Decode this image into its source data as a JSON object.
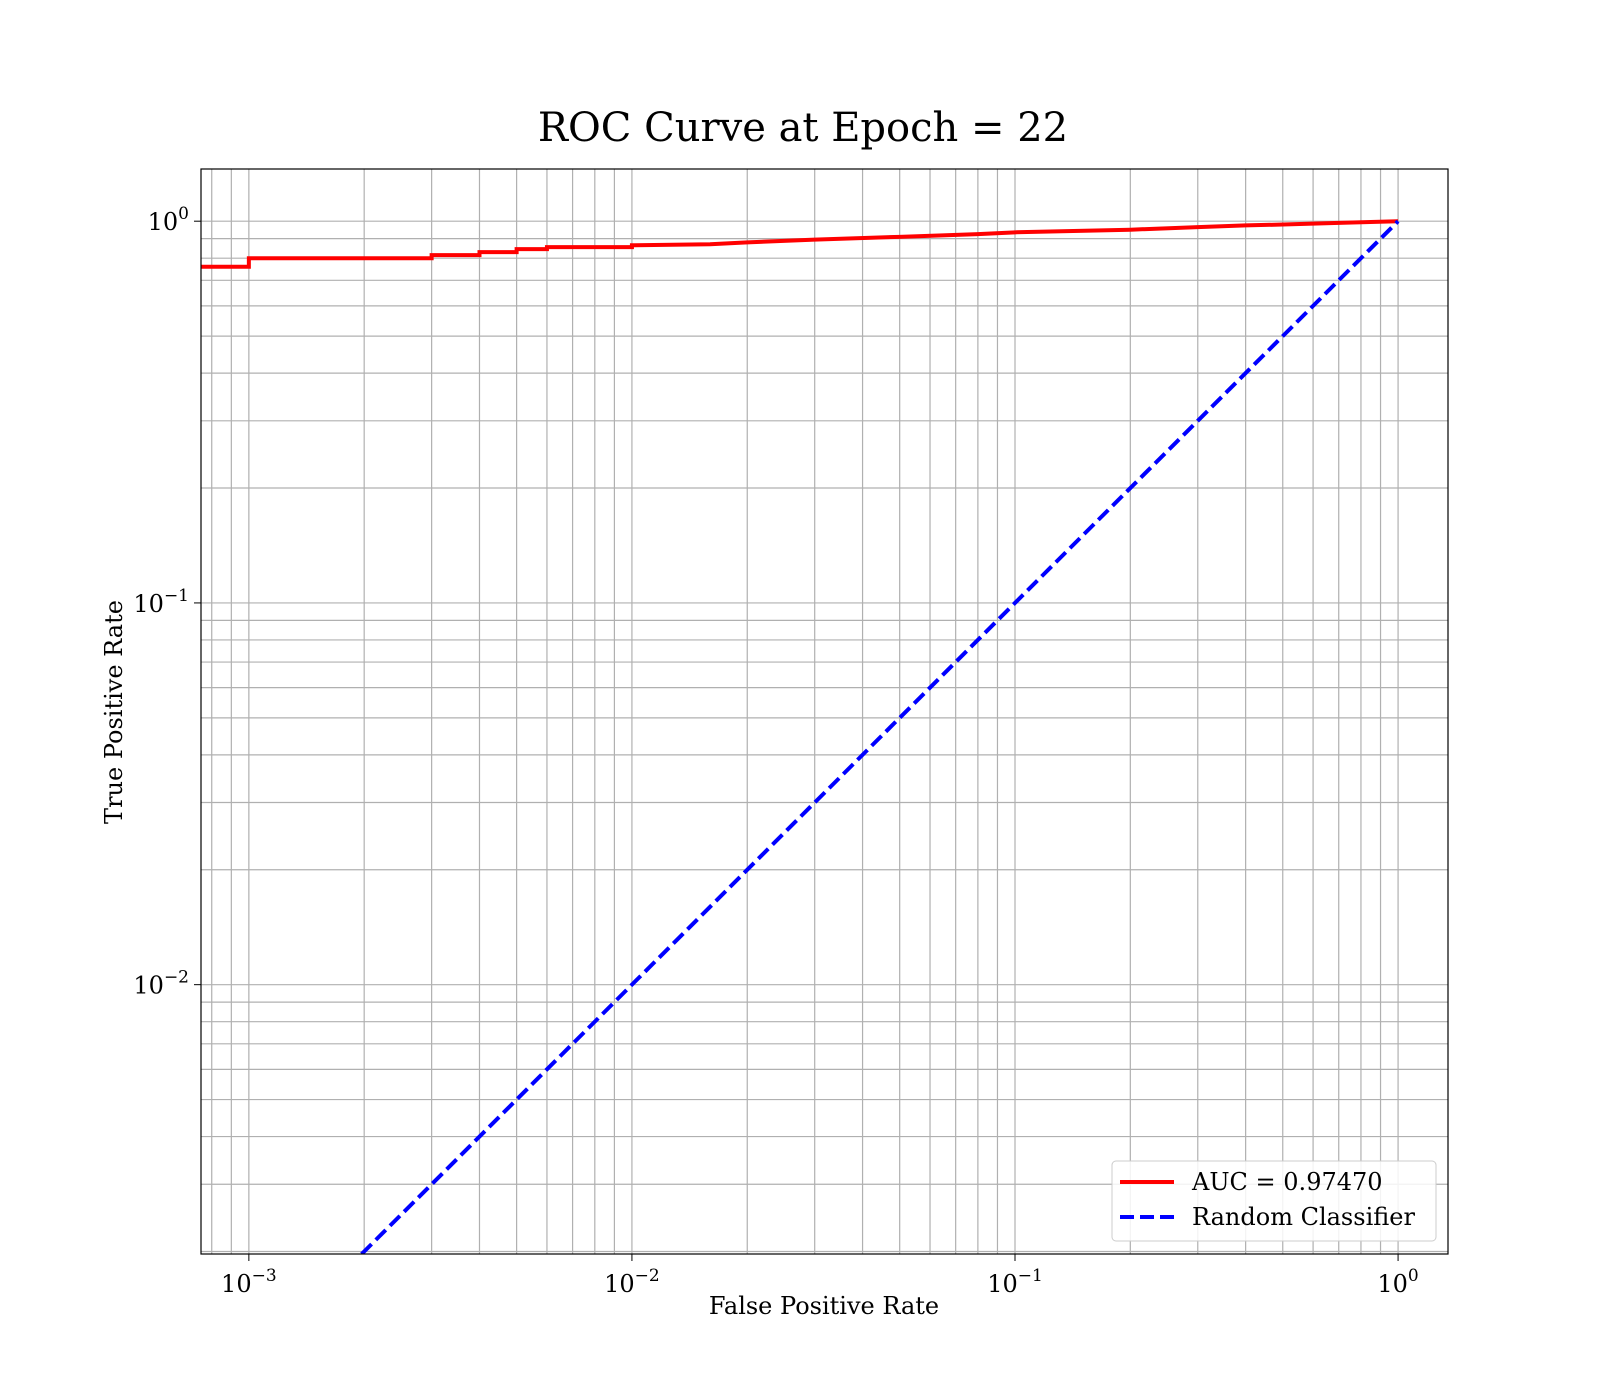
{
  "chart_data": {
    "type": "line",
    "title": "ROC Curve at Epoch = 22",
    "xlabel": "False Positive Rate",
    "ylabel": "True Positive Rate",
    "xscale": "log",
    "yscale": "log",
    "xlim": [
      0.00075,
      1.35
    ],
    "ylim": [
      0.00197,
      1.37
    ],
    "grid": "major and minor",
    "legend_position": "lower-right",
    "x_ticks": [
      {
        "value": 0.001,
        "base": "10",
        "exp": "−3"
      },
      {
        "value": 0.01,
        "base": "10",
        "exp": "−2"
      },
      {
        "value": 0.1,
        "base": "10",
        "exp": "−1"
      },
      {
        "value": 1,
        "base": "10",
        "exp": "0"
      }
    ],
    "y_ticks": [
      {
        "value": 0.01,
        "base": "10",
        "exp": "−2"
      },
      {
        "value": 0.1,
        "base": "10",
        "exp": "−1"
      },
      {
        "value": 1,
        "base": "10",
        "exp": "0"
      }
    ],
    "series": [
      {
        "name": "AUC = 0.97470",
        "color": "#ff0000",
        "style": "solid",
        "x": [
          0.00075,
          0.001,
          0.001,
          0.003,
          0.003,
          0.004,
          0.004,
          0.005,
          0.005,
          0.006,
          0.006,
          0.01,
          0.01,
          0.016,
          0.02,
          0.03,
          0.05,
          0.08,
          0.1,
          0.2,
          0.3,
          0.4,
          0.5,
          0.7,
          1.0
        ],
        "y": [
          0.76,
          0.76,
          0.8,
          0.8,
          0.815,
          0.815,
          0.83,
          0.83,
          0.845,
          0.845,
          0.855,
          0.855,
          0.865,
          0.87,
          0.88,
          0.895,
          0.91,
          0.925,
          0.935,
          0.95,
          0.965,
          0.975,
          0.98,
          0.99,
          1.0
        ]
      },
      {
        "name": "Random Classifier",
        "color": "#0000ff",
        "style": "dashed",
        "x": [
          0.00197,
          1.0
        ],
        "y": [
          0.00197,
          1.0
        ]
      }
    ]
  }
}
